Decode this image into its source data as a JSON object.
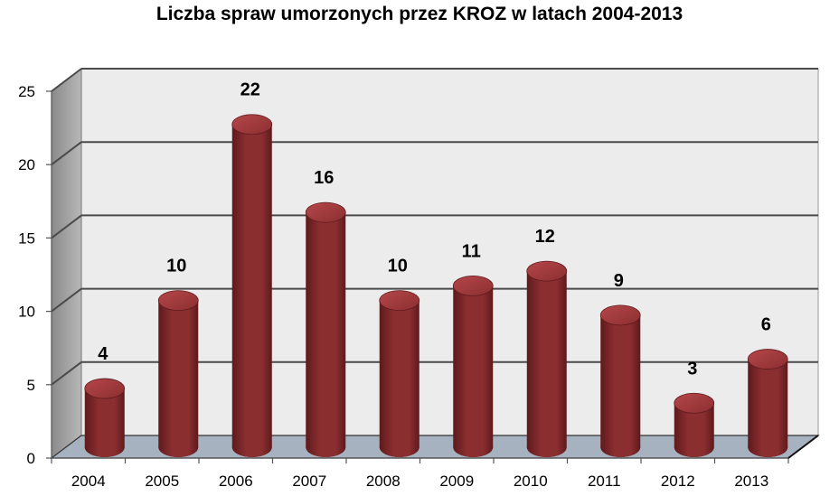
{
  "chart_data": {
    "type": "bar",
    "title": "Liczba spraw umorzonych przez KROZ w latach 2004-2013",
    "xlabel": "",
    "ylabel": "",
    "categories": [
      "2004",
      "2005",
      "2006",
      "2007",
      "2008",
      "2009",
      "2010",
      "2011",
      "2012",
      "2013"
    ],
    "values": [
      4,
      10,
      22,
      16,
      10,
      11,
      12,
      9,
      3,
      6
    ],
    "ylim": [
      0,
      25
    ],
    "yticks": [
      0,
      5,
      10,
      15,
      20,
      25
    ],
    "grid": true,
    "legend": "none",
    "style": "3d-cylinder",
    "colors": {
      "bar": "#8b2e30",
      "bar_dark": "#5e1a1c",
      "bar_light": "#b5474a",
      "wall": "#ececec",
      "side_wall": "#b8b8b8",
      "floor": "#a6b2bf",
      "grid": "#4a4a4a"
    }
  }
}
